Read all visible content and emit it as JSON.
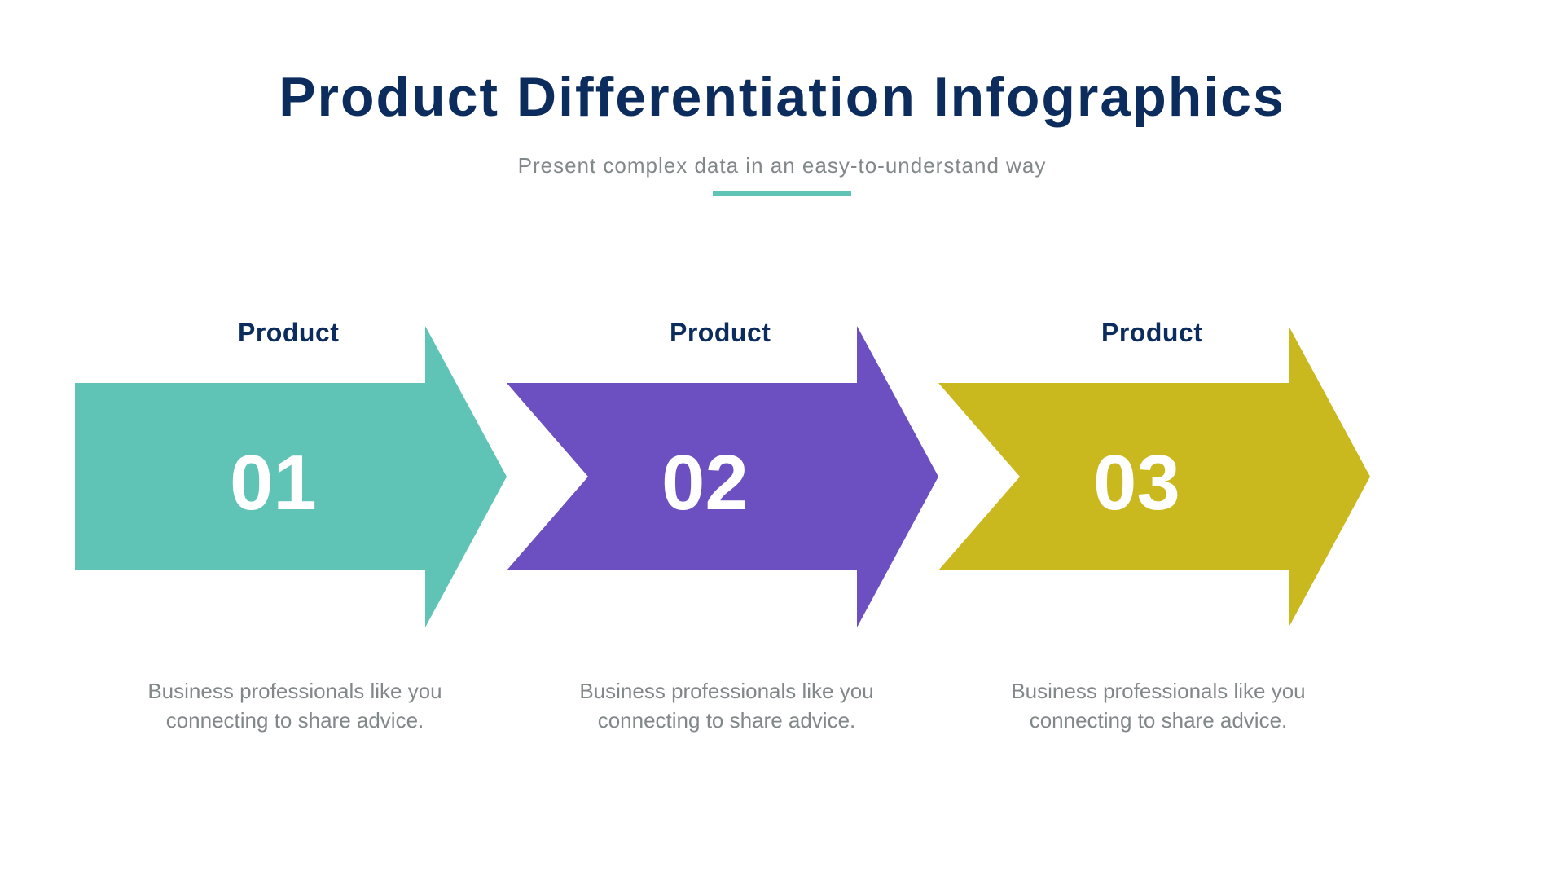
{
  "header": {
    "title": "Product Differentiation Infographics",
    "title_color": "#0b2c5d",
    "title_fontsize": 68,
    "subtitle": "Present complex data in an easy-to-understand way",
    "subtitle_color": "#828789",
    "subtitle_fontsize": 26,
    "accent_color": "#5fc4b5",
    "accent_width": 170
  },
  "infographic": {
    "type": "arrow-steps",
    "background": "#ffffff",
    "arrow": {
      "body_height": 230,
      "head_extra_height": 70,
      "segment_body_width": 430,
      "segment_overlap": 0,
      "step_pitch": 530
    },
    "label_color": "#0b2c5d",
    "label_fontsize": 32,
    "number_color": "#ffffff",
    "number_fontsize": 96,
    "body_color": "#828789",
    "body_fontsize": 26,
    "steps": [
      {
        "label": "Product",
        "number": "01",
        "color": "#5fc4b5",
        "body": "Business professionals like you connecting to share advice."
      },
      {
        "label": "Product",
        "number": "02",
        "color": "#6c4fc1",
        "body": "Business professionals like you connecting to share advice."
      },
      {
        "label": "Product",
        "number": "03",
        "color": "#c9b81e",
        "body": "Business professionals like you connecting to share advice."
      }
    ]
  }
}
